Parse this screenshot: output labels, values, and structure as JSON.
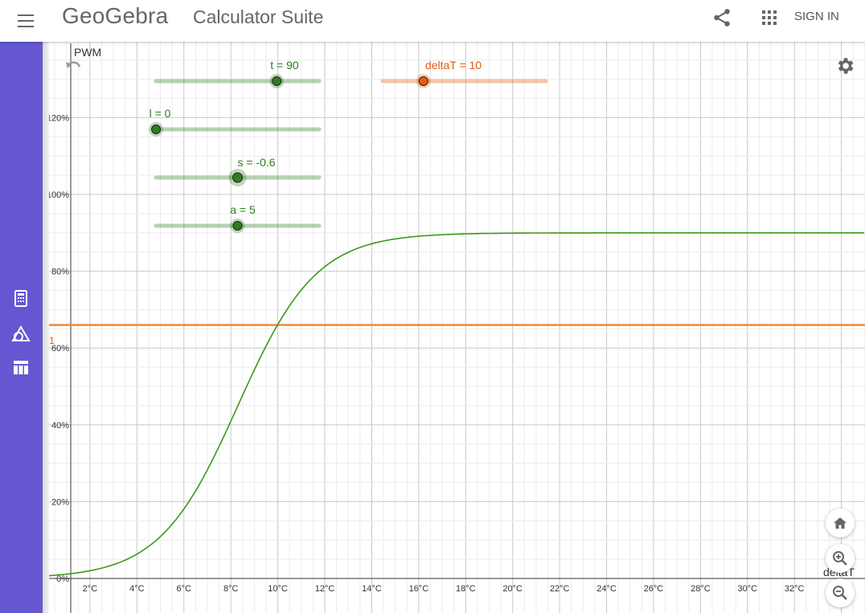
{
  "header": {
    "logo_text": "GeoGebra",
    "subtitle": "Calculator Suite",
    "sign_in_label": "SIGN IN"
  },
  "sidebar": {
    "items": [
      {
        "icon": "calculator-icon"
      },
      {
        "icon": "geometry-icon"
      },
      {
        "icon": "table-icon"
      }
    ]
  },
  "graph": {
    "y_axis_label": "PWM",
    "x_axis_label": "deltaT",
    "function_label": "f",
    "function_label_sub": "1",
    "y_ticks": [
      "0%",
      "20%",
      "40%",
      "60%",
      "80%",
      "100%",
      "120%"
    ],
    "x_ticks": [
      "2°C",
      "4°C",
      "6°C",
      "8°C",
      "10°C",
      "12°C",
      "14°C",
      "16°C",
      "18°C",
      "20°C",
      "22°C",
      "24°C",
      "26°C",
      "28°C",
      "30°C",
      "32°C"
    ]
  },
  "sliders": [
    {
      "label": "t = 90",
      "value_fraction": 0.74,
      "color": "#2e7d1f"
    },
    {
      "label": "deltaT = 10",
      "value_fraction": 0.25,
      "color": "#e65c0d"
    },
    {
      "label": "l = 0",
      "value_fraction": 0.0,
      "color": "#2e7d1f"
    },
    {
      "label": "s = -0.6",
      "value_fraction": 0.5,
      "color": "#2e7d1f"
    },
    {
      "label": "a = 5",
      "value_fraction": 0.5,
      "color": "#2e7d1f"
    }
  ],
  "colors": {
    "sidebar": "#6557d2",
    "curve": "#3a9a17",
    "hline": "#f08a35",
    "slider_green": "#2e7d1f",
    "slider_orange": "#e65c0d"
  },
  "chart_data": {
    "type": "line",
    "xlabel": "deltaT",
    "ylabel": "PWM",
    "xlim": [
      0.5,
      33.5
    ],
    "ylim": [
      0,
      1.37
    ],
    "series": [
      {
        "name": "f",
        "formula": "0.9/(1+exp(-0.6*(x-8.3)))"
      },
      {
        "name": "f1",
        "values": [
          0.66
        ]
      }
    ]
  }
}
